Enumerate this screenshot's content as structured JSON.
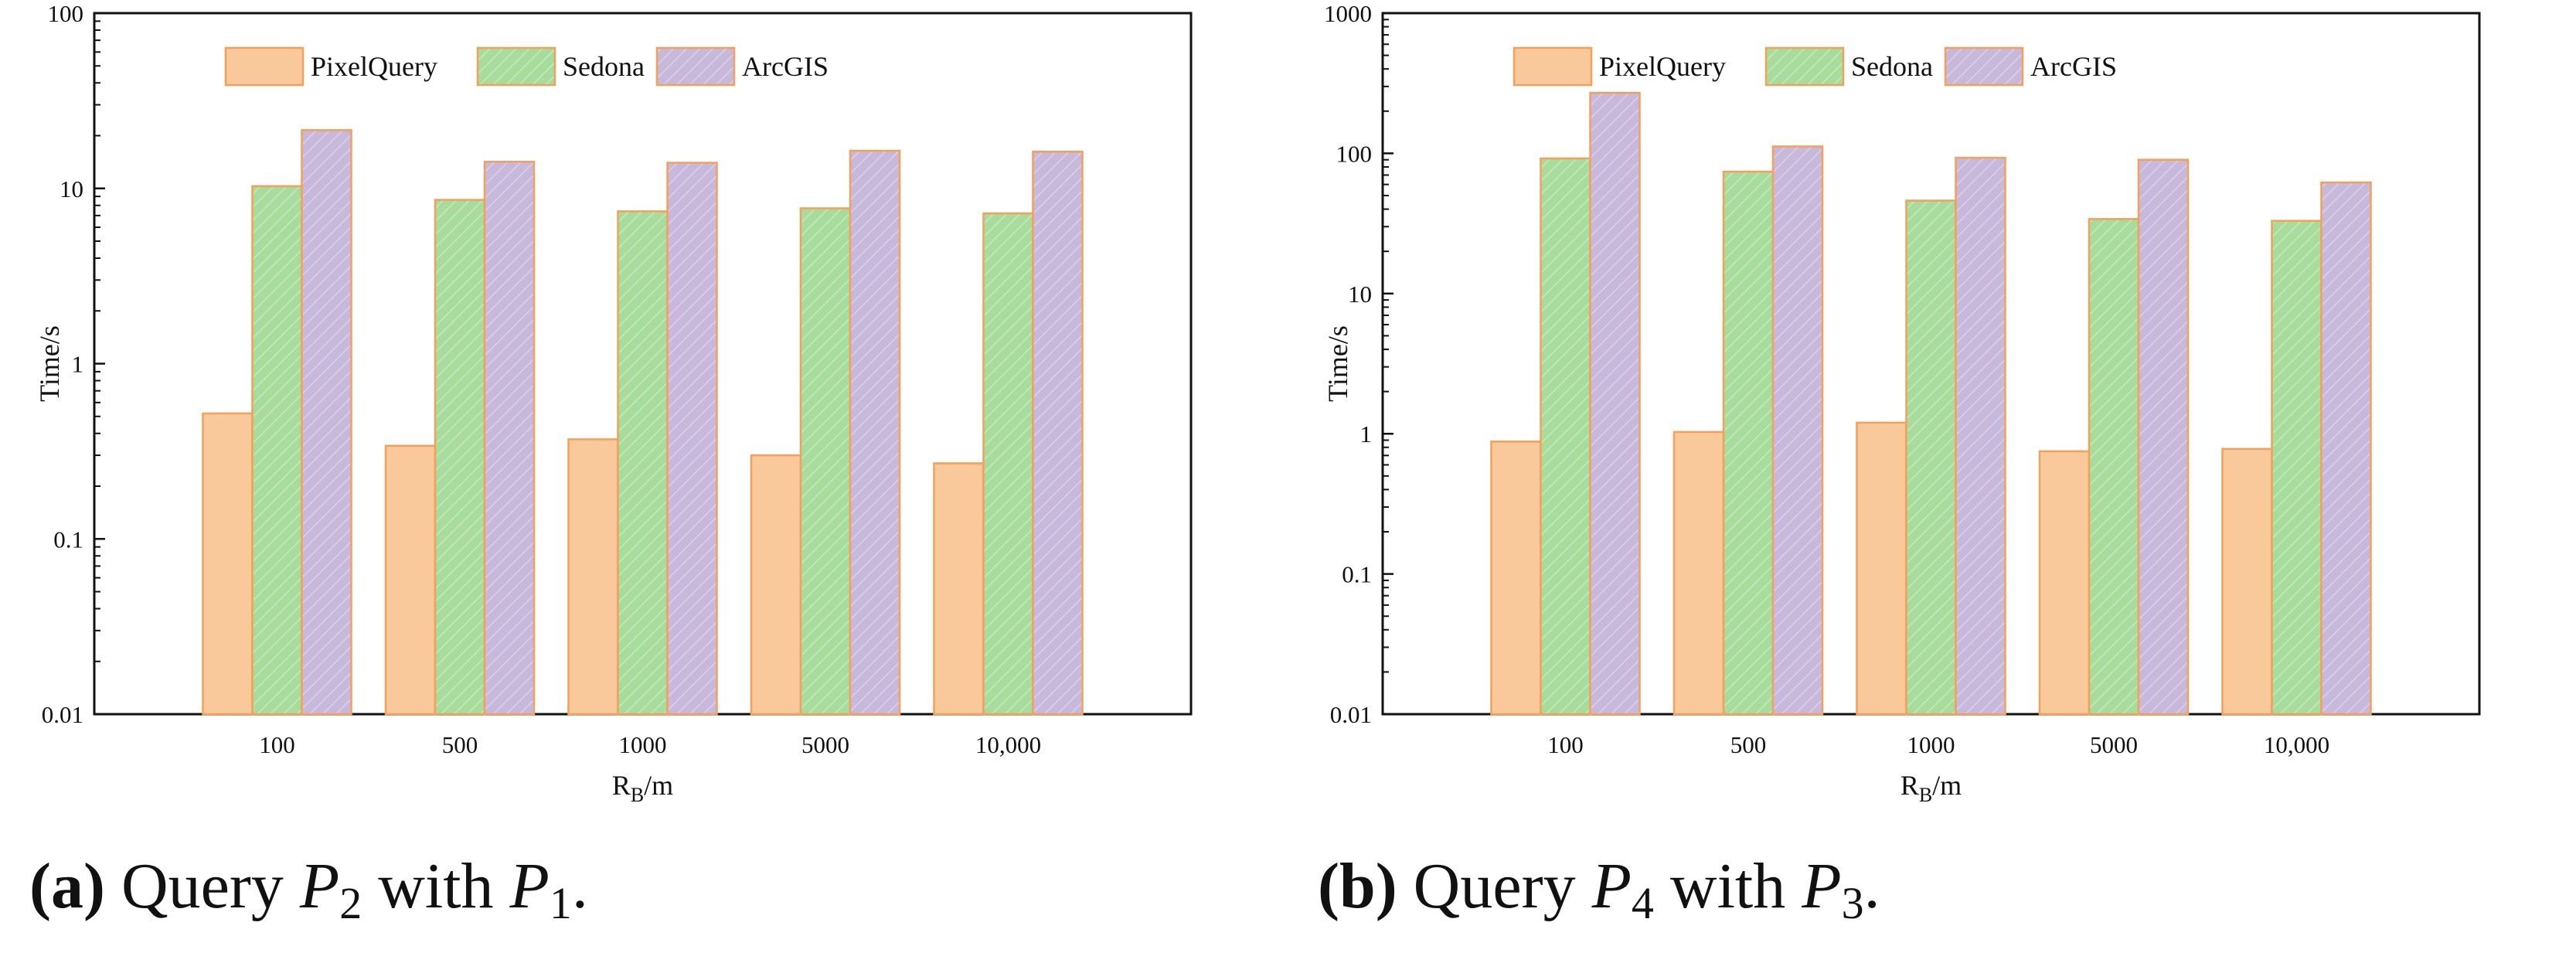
{
  "colors": {
    "PixelQuery": "#f9c99c",
    "Sedona": "#a8dc9c",
    "ArcGIS": "#c8b8dc",
    "bar_stroke": "#f2a05a",
    "axis": "#111111"
  },
  "chart_data": [
    {
      "type": "bar",
      "y_scale": "log",
      "title": "",
      "xlabel": "R",
      "xlabel_sub": "B",
      "xlabel_suffix": "/m",
      "ylabel": "Time/s",
      "ylim": [
        0.01,
        100
      ],
      "yticks": [
        0.01,
        0.1,
        1,
        10,
        100
      ],
      "ytick_labels": [
        "0.01",
        "0.1",
        "1",
        "10",
        "100"
      ],
      "categories": [
        "100",
        "500",
        "1000",
        "5000",
        "10,000"
      ],
      "legend_position": "top",
      "series": [
        {
          "name": "PixelQuery",
          "values": [
            0.52,
            0.34,
            0.37,
            0.3,
            0.27
          ]
        },
        {
          "name": "Sedona",
          "values": [
            10.3,
            8.6,
            7.4,
            7.7,
            7.2
          ]
        },
        {
          "name": "ArcGIS",
          "values": [
            21.5,
            14.2,
            14.0,
            16.4,
            16.2
          ]
        }
      ],
      "caption": {
        "label": "(a)",
        "text_before": "Query",
        "p_first": "P",
        "p_first_sub": "2",
        "text_mid": "with",
        "p_second": "P",
        "p_second_sub": "1",
        "text_end": "."
      }
    },
    {
      "type": "bar",
      "y_scale": "log",
      "title": "",
      "xlabel": "R",
      "xlabel_sub": "B",
      "xlabel_suffix": "/m",
      "ylabel": "Time/s",
      "ylim": [
        0.01,
        1000
      ],
      "yticks": [
        0.01,
        0.1,
        1,
        10,
        100,
        1000
      ],
      "ytick_labels": [
        "0.01",
        "0.1",
        "1",
        "10",
        "100",
        "1000"
      ],
      "categories": [
        "100",
        "500",
        "1000",
        "5000",
        "10,000"
      ],
      "legend_position": "top",
      "series": [
        {
          "name": "PixelQuery",
          "values": [
            0.88,
            1.03,
            1.2,
            0.75,
            0.78
          ]
        },
        {
          "name": "Sedona",
          "values": [
            92,
            74,
            46,
            34,
            33
          ]
        },
        {
          "name": "ArcGIS",
          "values": [
            270,
            112,
            93,
            90,
            62
          ]
        }
      ],
      "caption": {
        "label": "(b)",
        "text_before": "Query",
        "p_first": "P",
        "p_first_sub": "4",
        "text_mid": "with",
        "p_second": "P",
        "p_second_sub": "3",
        "text_end": "."
      }
    }
  ]
}
